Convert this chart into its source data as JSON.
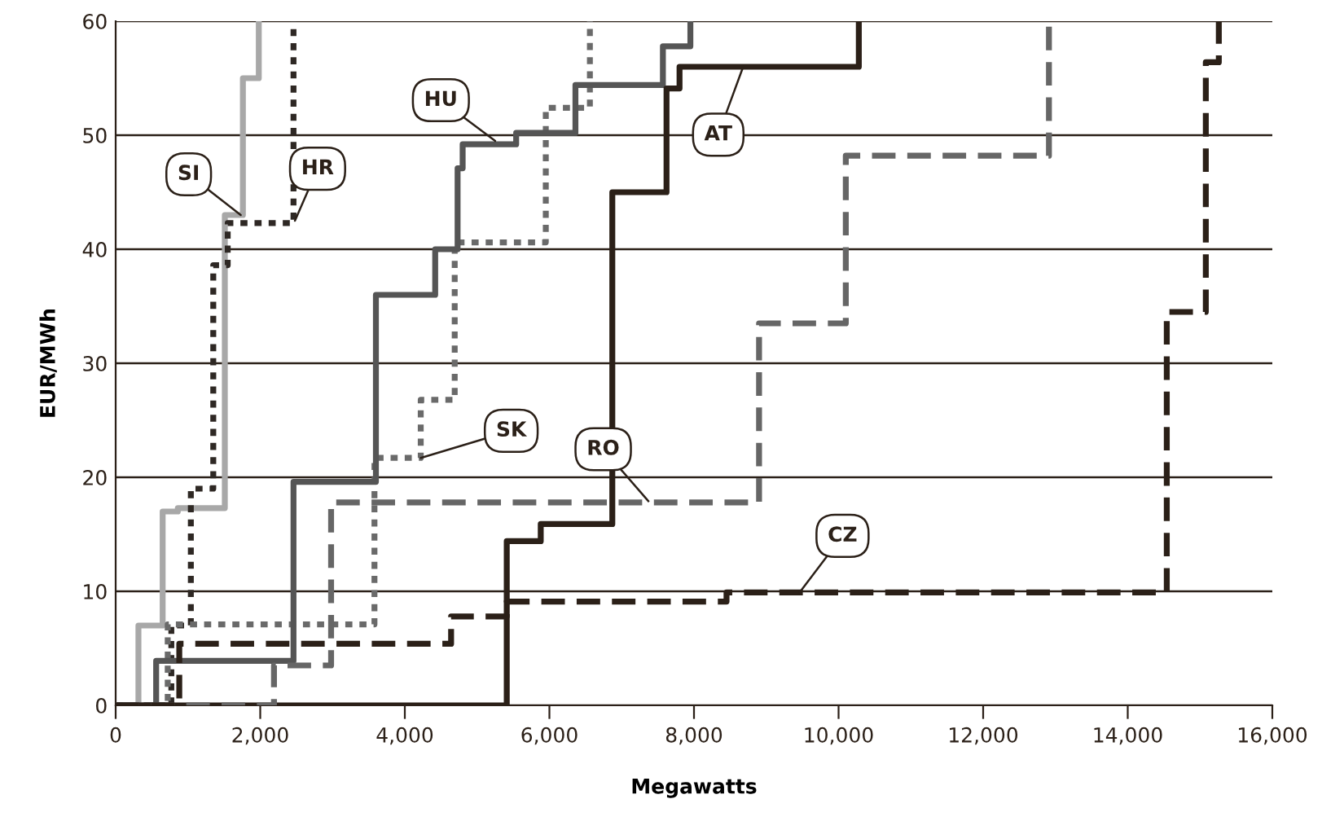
{
  "chart_data": {
    "type": "step",
    "xlabel": "Megawatts",
    "ylabel": "EUR/MWh",
    "series": [
      {
        "color": "#a8a8a8",
        "line_style": "solid",
        "x": [
          0,
          315,
          650,
          860,
          1510,
          1760,
          1980
        ],
        "values": [
          0,
          7,
          17,
          17.3,
          43,
          55,
          60
        ]
      },
      {
        "color": "#2e2824",
        "line_style": "dotted",
        "x": [
          0,
          770,
          1040,
          1350,
          1550,
          2460
        ],
        "values": [
          0,
          7,
          19,
          38.6,
          42.3,
          60
        ]
      },
      {
        "color": "#6a6a6a",
        "line_style": "dotted",
        "x": [
          0,
          720,
          3580,
          4220,
          4690,
          5950,
          6560
        ],
        "values": [
          0,
          7.1,
          21.7,
          26.8,
          40.6,
          52.4,
          60
        ]
      },
      {
        "color": "#555555",
        "line_style": "solid",
        "x": [
          0,
          560,
          2460,
          3600,
          4420,
          4730,
          4800,
          5540,
          6360,
          7570,
          7950
        ],
        "values": [
          0,
          3.9,
          19.6,
          36,
          40,
          47.1,
          49.2,
          50.2,
          54.4,
          57.8,
          60
        ]
      },
      {
        "color": "#2b2018",
        "line_style": "solid",
        "x": [
          0,
          5410,
          5880,
          6870,
          7620,
          7800,
          10280
        ],
        "values": [
          0,
          14.4,
          15.9,
          45,
          54.1,
          56,
          60
        ]
      },
      {
        "color": "#666666",
        "line_style": "dashed",
        "x": [
          0,
          2190,
          2980,
          8900,
          10100,
          12910
        ],
        "values": [
          0,
          3.5,
          17.8,
          33.5,
          48.2,
          60
        ]
      },
      {
        "color": "#2b2018",
        "line_style": "dashed",
        "x": [
          0,
          880,
          4640,
          5410,
          8450,
          14540,
          15080,
          15260
        ],
        "values": [
          0,
          5.4,
          7.8,
          9.1,
          9.9,
          34.5,
          56.4,
          60
        ]
      }
    ],
    "annotations": [
      {
        "text": "SI",
        "x": 1730,
        "y": 43
      },
      {
        "text": "HR",
        "x": 2480,
        "y": 42.5
      },
      {
        "text": "HU",
        "x": 5250,
        "y": 49.5
      },
      {
        "text": "AT",
        "x": 8680,
        "y": 56
      },
      {
        "text": "SK",
        "x": 4220,
        "y": 21.7
      },
      {
        "text": "RO",
        "x": 7370,
        "y": 17.9
      },
      {
        "text": "CZ",
        "x": 9460,
        "y": 9.9
      }
    ],
    "xlim": [
      0,
      16000
    ],
    "ylim": [
      0,
      60
    ],
    "xticks": [
      0,
      {
        "value": 2000,
        "label": "2,000"
      },
      {
        "value": 4000,
        "label": "4,000"
      },
      {
        "value": 6000,
        "label": "6,000"
      },
      {
        "value": 8000,
        "label": "8,000"
      },
      {
        "value": 10000,
        "label": "10,000"
      },
      {
        "value": 12000,
        "label": "12,000"
      },
      {
        "value": 14000,
        "label": "14,000"
      },
      {
        "value": 16000,
        "label": "16,000"
      }
    ],
    "yticks": [
      0,
      10,
      20,
      30,
      40,
      50,
      60
    ],
    "grid": "y",
    "marker": "none"
  }
}
